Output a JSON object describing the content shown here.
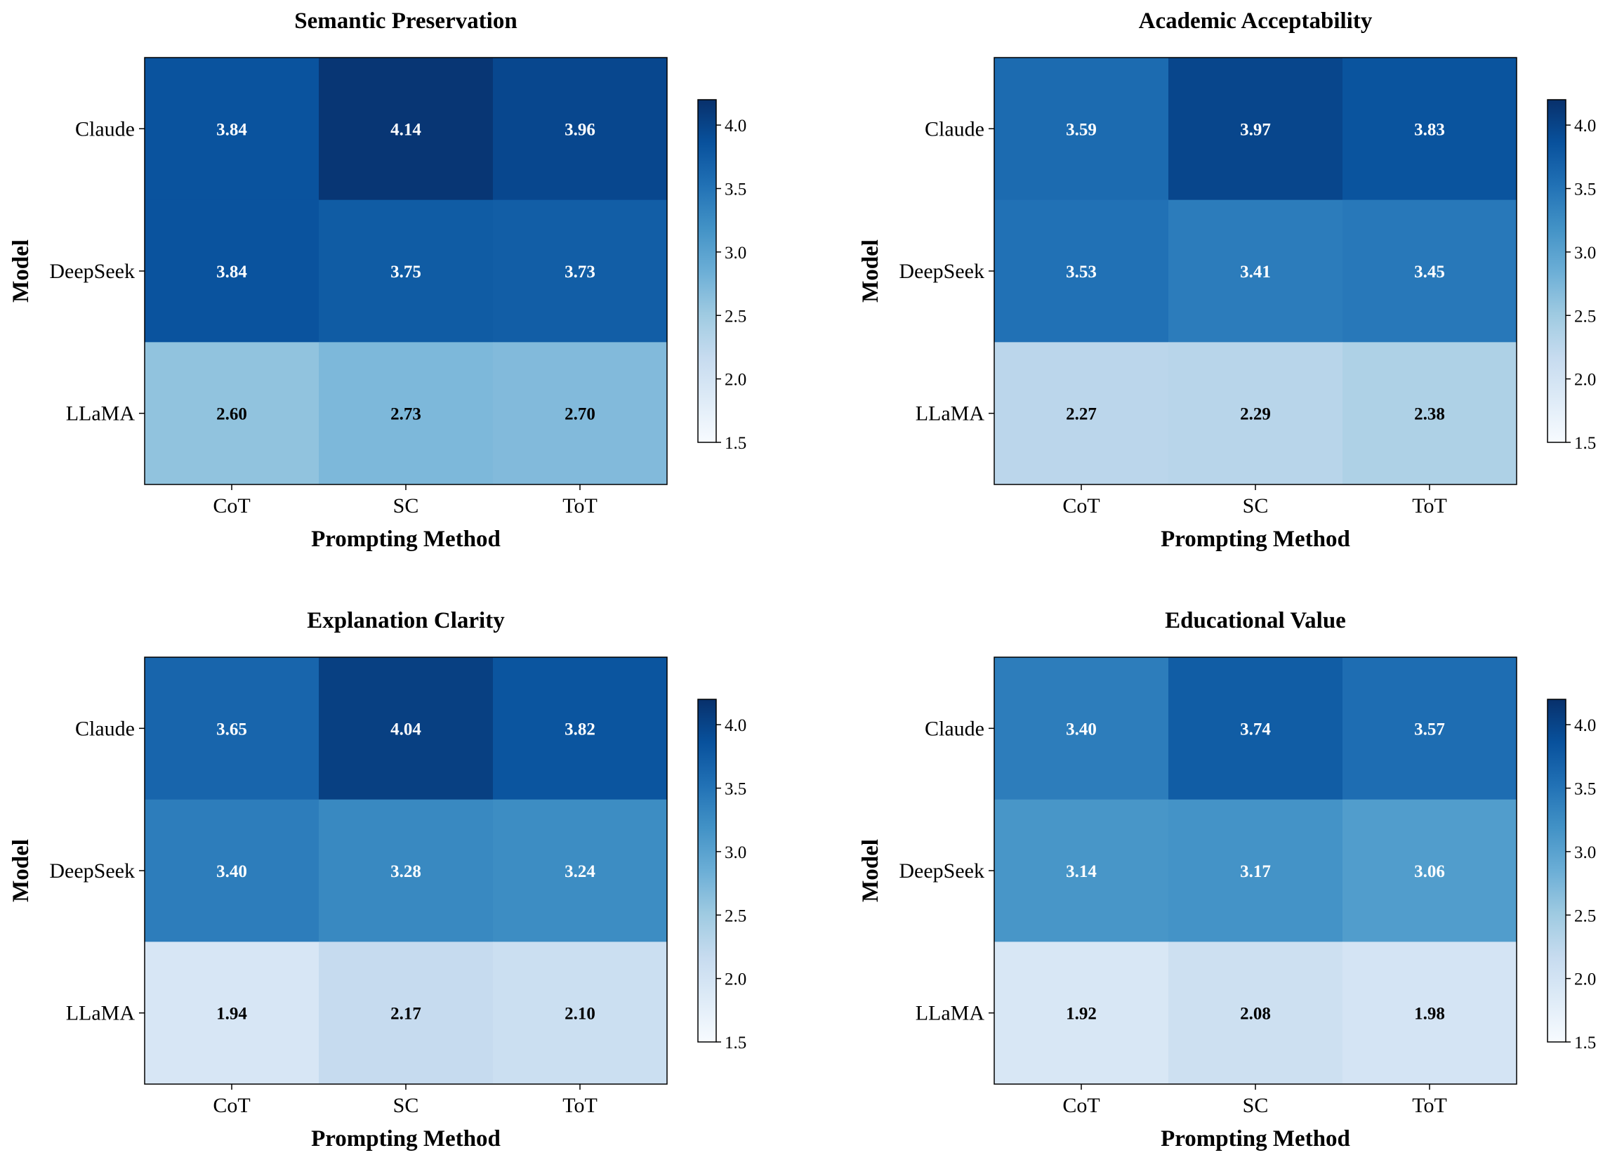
{
  "chart_data": [
    {
      "type": "heatmap",
      "title": "Semantic Preservation",
      "xlabel": "Prompting Method",
      "ylabel": "Model",
      "x_categories": [
        "CoT",
        "SC",
        "ToT"
      ],
      "y_categories": [
        "Claude",
        "DeepSeek",
        "LLaMA"
      ],
      "values": [
        [
          3.84,
          4.14,
          3.96
        ],
        [
          3.84,
          3.75,
          3.73
        ],
        [
          2.6,
          2.73,
          2.7
        ]
      ],
      "value_labels": [
        [
          "3.84",
          "4.14",
          "3.96"
        ],
        [
          "3.84",
          "3.75",
          "3.73"
        ],
        [
          "2.60",
          "2.73",
          "2.70"
        ]
      ],
      "colorbar": {
        "range": [
          1.5,
          4.2
        ],
        "ticks": [
          "1.5",
          "2.0",
          "2.5",
          "3.0",
          "3.5",
          "4.0"
        ],
        "colormap": "Blues"
      }
    },
    {
      "type": "heatmap",
      "title": "Academic Acceptability",
      "xlabel": "Prompting Method",
      "ylabel": "Model",
      "x_categories": [
        "CoT",
        "SC",
        "ToT"
      ],
      "y_categories": [
        "Claude",
        "DeepSeek",
        "LLaMA"
      ],
      "values": [
        [
          3.59,
          3.97,
          3.83
        ],
        [
          3.53,
          3.41,
          3.45
        ],
        [
          2.27,
          2.29,
          2.38
        ]
      ],
      "value_labels": [
        [
          "3.59",
          "3.97",
          "3.83"
        ],
        [
          "3.53",
          "3.41",
          "3.45"
        ],
        [
          "2.27",
          "2.29",
          "2.38"
        ]
      ],
      "colorbar": {
        "range": [
          1.5,
          4.2
        ],
        "ticks": [
          "1.5",
          "2.0",
          "2.5",
          "3.0",
          "3.5",
          "4.0"
        ],
        "colormap": "Blues"
      }
    },
    {
      "type": "heatmap",
      "title": "Explanation Clarity",
      "xlabel": "Prompting Method",
      "ylabel": "Model",
      "x_categories": [
        "CoT",
        "SC",
        "ToT"
      ],
      "y_categories": [
        "Claude",
        "DeepSeek",
        "LLaMA"
      ],
      "values": [
        [
          3.65,
          4.04,
          3.82
        ],
        [
          3.4,
          3.28,
          3.24
        ],
        [
          1.94,
          2.17,
          2.1
        ]
      ],
      "value_labels": [
        [
          "3.65",
          "4.04",
          "3.82"
        ],
        [
          "3.40",
          "3.28",
          "3.24"
        ],
        [
          "1.94",
          "2.17",
          "2.10"
        ]
      ],
      "colorbar": {
        "range": [
          1.5,
          4.2
        ],
        "ticks": [
          "1.5",
          "2.0",
          "2.5",
          "3.0",
          "3.5",
          "4.0"
        ],
        "colormap": "Blues"
      }
    },
    {
      "type": "heatmap",
      "title": "Educational Value",
      "xlabel": "Prompting Method",
      "ylabel": "Model",
      "x_categories": [
        "CoT",
        "SC",
        "ToT"
      ],
      "y_categories": [
        "Claude",
        "DeepSeek",
        "LLaMA"
      ],
      "values": [
        [
          3.4,
          3.74,
          3.57
        ],
        [
          3.14,
          3.17,
          3.06
        ],
        [
          1.92,
          2.08,
          1.98
        ]
      ],
      "value_labels": [
        [
          "3.40",
          "3.74",
          "3.57"
        ],
        [
          "3.14",
          "3.17",
          "3.06"
        ],
        [
          "1.92",
          "2.08",
          "1.98"
        ]
      ],
      "colorbar": {
        "range": [
          1.5,
          4.2
        ],
        "ticks": [
          "1.5",
          "2.0",
          "2.5",
          "3.0",
          "3.5",
          "4.0"
        ],
        "colormap": "Blues"
      }
    }
  ]
}
